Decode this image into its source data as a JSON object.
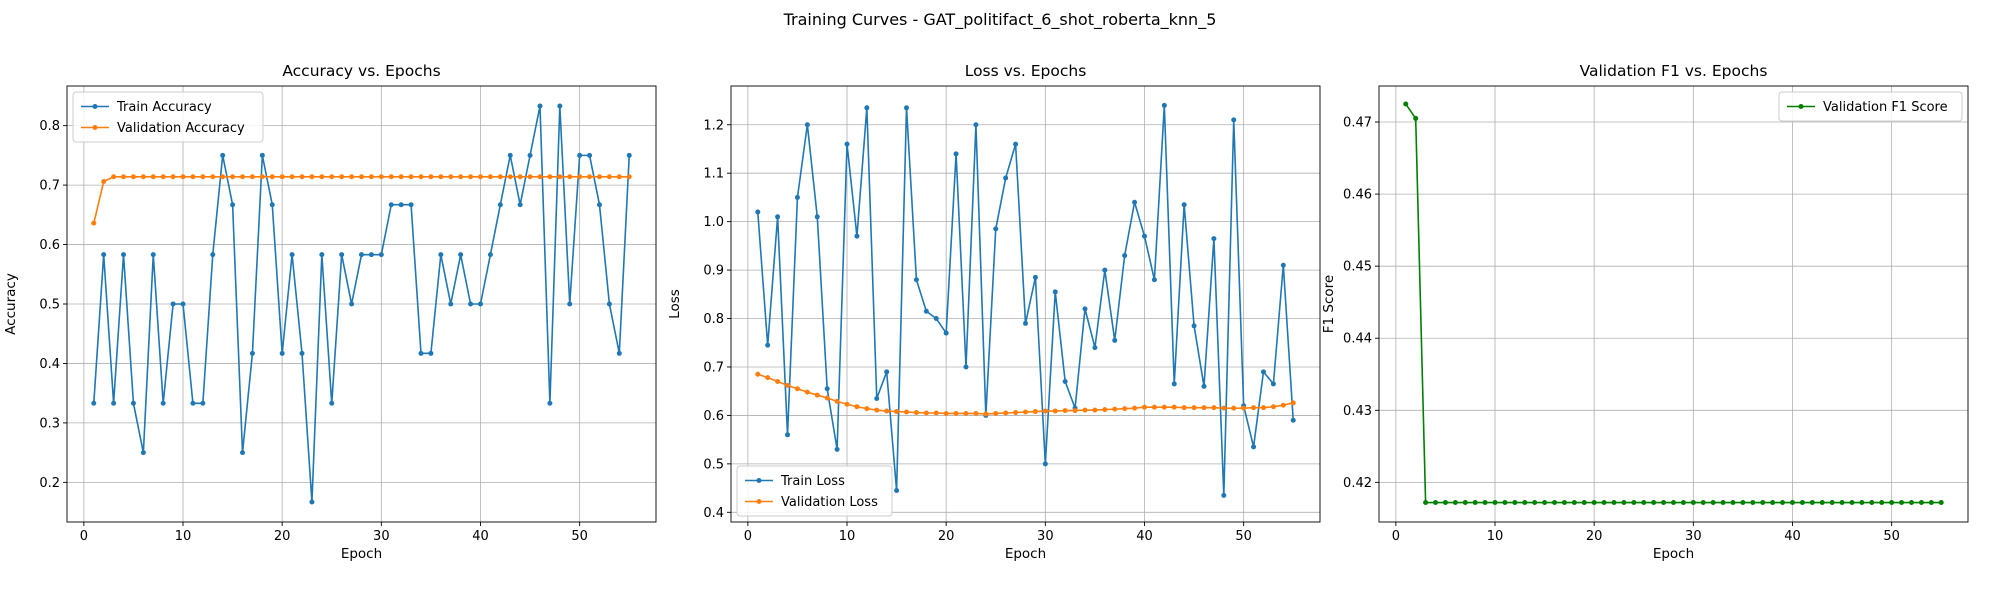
{
  "figure": {
    "suptitle": "Training Curves - GAT_politifact_6_shot_roberta_knn_5"
  },
  "chart_data": [
    {
      "type": "line",
      "title": "Accuracy vs. Epochs",
      "xlabel": "Epoch",
      "ylabel": "Accuracy",
      "xlim": [
        -1.7,
        57.7
      ],
      "ylim": [
        0.1333,
        0.8667
      ],
      "xticks": [
        0,
        10,
        20,
        30,
        40,
        50
      ],
      "yticks": [
        0.2,
        0.3,
        0.4,
        0.5,
        0.6,
        0.7,
        0.8
      ],
      "grid": true,
      "legend": "upper left",
      "x": [
        1,
        2,
        3,
        4,
        5,
        6,
        7,
        8,
        9,
        10,
        11,
        12,
        13,
        14,
        15,
        16,
        17,
        18,
        19,
        20,
        21,
        22,
        23,
        24,
        25,
        26,
        27,
        28,
        29,
        30,
        31,
        32,
        33,
        34,
        35,
        36,
        37,
        38,
        39,
        40,
        41,
        42,
        43,
        44,
        45,
        46,
        47,
        48,
        49,
        50,
        51,
        52,
        53,
        54,
        55
      ],
      "series": [
        {
          "name": "Train Accuracy",
          "color": "#1f77b4",
          "values": [
            0.333,
            0.583,
            0.333,
            0.583,
            0.333,
            0.25,
            0.583,
            0.333,
            0.5,
            0.5,
            0.333,
            0.333,
            0.583,
            0.75,
            0.667,
            0.25,
            0.417,
            0.75,
            0.667,
            0.417,
            0.583,
            0.417,
            0.167,
            0.583,
            0.333,
            0.583,
            0.5,
            0.583,
            0.583,
            0.583,
            0.667,
            0.667,
            0.667,
            0.417,
            0.417,
            0.583,
            0.5,
            0.583,
            0.5,
            0.5,
            0.583,
            0.667,
            0.75,
            0.667,
            0.75,
            0.833,
            0.333,
            0.833,
            0.5,
            0.75,
            0.75,
            0.667,
            0.5,
            0.417,
            0.75
          ]
        },
        {
          "name": "Validation Accuracy",
          "color": "#ff7f0e",
          "values": [
            0.636,
            0.706,
            0.714,
            0.714,
            0.714,
            0.714,
            0.714,
            0.714,
            0.714,
            0.714,
            0.714,
            0.714,
            0.714,
            0.714,
            0.714,
            0.714,
            0.714,
            0.714,
            0.714,
            0.714,
            0.714,
            0.714,
            0.714,
            0.714,
            0.714,
            0.714,
            0.714,
            0.714,
            0.714,
            0.714,
            0.714,
            0.714,
            0.714,
            0.714,
            0.714,
            0.714,
            0.714,
            0.714,
            0.714,
            0.714,
            0.714,
            0.714,
            0.714,
            0.714,
            0.714,
            0.714,
            0.714,
            0.714,
            0.714,
            0.714,
            0.714,
            0.714,
            0.714,
            0.714,
            0.714
          ]
        }
      ]
    },
    {
      "type": "line",
      "title": "Loss vs. Epochs",
      "xlabel": "Epoch",
      "ylabel": "Loss",
      "xlim": [
        -1.7,
        57.7
      ],
      "ylim": [
        0.38,
        1.28
      ],
      "xticks": [
        0,
        10,
        20,
        30,
        40,
        50
      ],
      "yticks": [
        0.4,
        0.5,
        0.6,
        0.7,
        0.8,
        0.9,
        1.0,
        1.1,
        1.2
      ],
      "grid": true,
      "legend": "lower left",
      "x": [
        1,
        2,
        3,
        4,
        5,
        6,
        7,
        8,
        9,
        10,
        11,
        12,
        13,
        14,
        15,
        16,
        17,
        18,
        19,
        20,
        21,
        22,
        23,
        24,
        25,
        26,
        27,
        28,
        29,
        30,
        31,
        32,
        33,
        34,
        35,
        36,
        37,
        38,
        39,
        40,
        41,
        42,
        43,
        44,
        45,
        46,
        47,
        48,
        49,
        50,
        51,
        52,
        53,
        54,
        55
      ],
      "series": [
        {
          "name": "Train Loss",
          "color": "#1f77b4",
          "values": [
            1.02,
            0.745,
            1.01,
            0.56,
            1.05,
            1.2,
            1.01,
            0.655,
            0.53,
            1.16,
            0.97,
            1.235,
            0.635,
            0.69,
            0.445,
            1.235,
            0.88,
            0.815,
            0.8,
            0.77,
            1.14,
            0.7,
            1.2,
            0.6,
            0.985,
            1.09,
            1.16,
            0.79,
            0.885,
            0.5,
            0.855,
            0.67,
            0.615,
            0.82,
            0.74,
            0.9,
            0.755,
            0.93,
            1.04,
            0.97,
            0.88,
            1.24,
            0.665,
            1.035,
            0.785,
            0.66,
            0.965,
            0.435,
            1.21,
            0.62,
            0.535,
            0.69,
            0.665,
            0.91,
            0.59
          ]
        },
        {
          "name": "Validation Loss",
          "color": "#ff7f0e",
          "values": [
            0.685,
            0.678,
            0.67,
            0.662,
            0.655,
            0.648,
            0.642,
            0.636,
            0.629,
            0.623,
            0.618,
            0.614,
            0.611,
            0.609,
            0.608,
            0.607,
            0.606,
            0.605,
            0.605,
            0.604,
            0.604,
            0.604,
            0.604,
            0.603,
            0.604,
            0.605,
            0.606,
            0.607,
            0.608,
            0.609,
            0.609,
            0.61,
            0.61,
            0.611,
            0.611,
            0.612,
            0.613,
            0.614,
            0.615,
            0.617,
            0.617,
            0.617,
            0.617,
            0.616,
            0.616,
            0.616,
            0.616,
            0.615,
            0.615,
            0.615,
            0.616,
            0.616,
            0.618,
            0.621,
            0.626
          ]
        }
      ]
    },
    {
      "type": "line",
      "title": "Validation F1 vs. Epochs",
      "xlabel": "Epoch",
      "ylabel": "F1 Score",
      "xlim": [
        -1.7,
        57.7
      ],
      "ylim": [
        0.4145,
        0.475
      ],
      "xticks": [
        0,
        10,
        20,
        30,
        40,
        50
      ],
      "yticks": [
        0.42,
        0.43,
        0.44,
        0.45,
        0.46,
        0.47
      ],
      "grid": true,
      "legend": "upper right",
      "x": [
        1,
        2,
        3,
        4,
        5,
        6,
        7,
        8,
        9,
        10,
        11,
        12,
        13,
        14,
        15,
        16,
        17,
        18,
        19,
        20,
        21,
        22,
        23,
        24,
        25,
        26,
        27,
        28,
        29,
        30,
        31,
        32,
        33,
        34,
        35,
        36,
        37,
        38,
        39,
        40,
        41,
        42,
        43,
        44,
        45,
        46,
        47,
        48,
        49,
        50,
        51,
        52,
        53,
        54,
        55
      ],
      "series": [
        {
          "name": "Validation F1 Score",
          "color": "#008000",
          "values": [
            0.4725,
            0.4705,
            0.4172,
            0.4172,
            0.4172,
            0.4172,
            0.4172,
            0.4172,
            0.4172,
            0.4172,
            0.4172,
            0.4172,
            0.4172,
            0.4172,
            0.4172,
            0.4172,
            0.4172,
            0.4172,
            0.4172,
            0.4172,
            0.4172,
            0.4172,
            0.4172,
            0.4172,
            0.4172,
            0.4172,
            0.4172,
            0.4172,
            0.4172,
            0.4172,
            0.4172,
            0.4172,
            0.4172,
            0.4172,
            0.4172,
            0.4172,
            0.4172,
            0.4172,
            0.4172,
            0.4172,
            0.4172,
            0.4172,
            0.4172,
            0.4172,
            0.4172,
            0.4172,
            0.4172,
            0.4172,
            0.4172,
            0.4172,
            0.4172,
            0.4172,
            0.4172,
            0.4172,
            0.4172
          ]
        }
      ]
    }
  ]
}
